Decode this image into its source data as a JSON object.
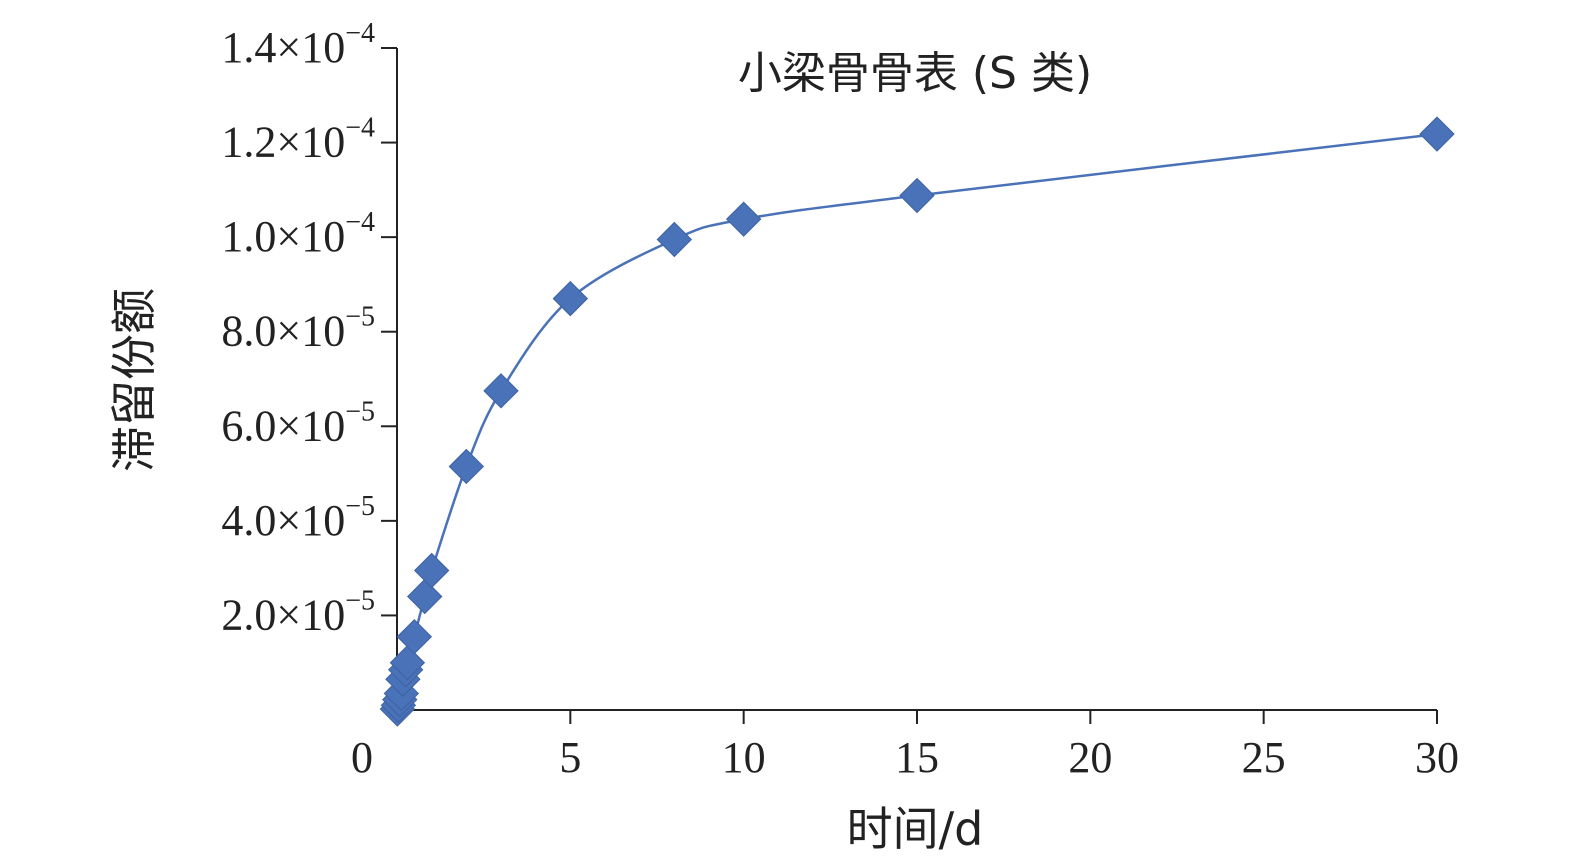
{
  "chart_data": {
    "type": "scatter",
    "title": "小梁骨骨表 (S 类)",
    "xlabel": "时间/d",
    "ylabel": "滞留份额",
    "xlim": [
      0,
      30
    ],
    "ylim": [
      0,
      0.00014
    ],
    "x_ticks": [
      {
        "value": 0,
        "label": "0"
      },
      {
        "value": 5,
        "label": "5"
      },
      {
        "value": 10,
        "label": "10"
      },
      {
        "value": 15,
        "label": "15"
      },
      {
        "value": 20,
        "label": "20"
      },
      {
        "value": 25,
        "label": "25"
      },
      {
        "value": 30,
        "label": "30"
      }
    ],
    "y_ticks": [
      {
        "value": 2e-05,
        "mantissa": "2.0×10",
        "exponent": "−5"
      },
      {
        "value": 4e-05,
        "mantissa": "4.0×10",
        "exponent": "−5"
      },
      {
        "value": 6e-05,
        "mantissa": "6.0×10",
        "exponent": "−5"
      },
      {
        "value": 8e-05,
        "mantissa": "8.0×10",
        "exponent": "−5"
      },
      {
        "value": 0.0001,
        "mantissa": "1.0×10",
        "exponent": "−4"
      },
      {
        "value": 0.00012,
        "mantissa": "1.2×10",
        "exponent": "−4"
      },
      {
        "value": 0.00014,
        "mantissa": "1.4×10",
        "exponent": "−4"
      }
    ],
    "grid": false,
    "marker": "diamond",
    "series_color": "#4a72b8",
    "series": [
      {
        "x": [
          0.01,
          0.04,
          0.08,
          0.125,
          0.17,
          0.25,
          0.3,
          0.5,
          0.8,
          1.0,
          2.0,
          3.0,
          5.0,
          8.0,
          10.0,
          15.0,
          30.0
        ],
        "y": [
          2e-07,
          1e-06,
          2.2e-06,
          3.5e-06,
          6.5e-06,
          8.5e-06,
          1e-05,
          1.55e-05,
          2.4e-05,
          2.95e-05,
          5.15e-05,
          6.75e-05,
          8.7e-05,
          9.95e-05,
          0.0001038,
          0.0001088,
          0.0001218
        ]
      }
    ]
  }
}
